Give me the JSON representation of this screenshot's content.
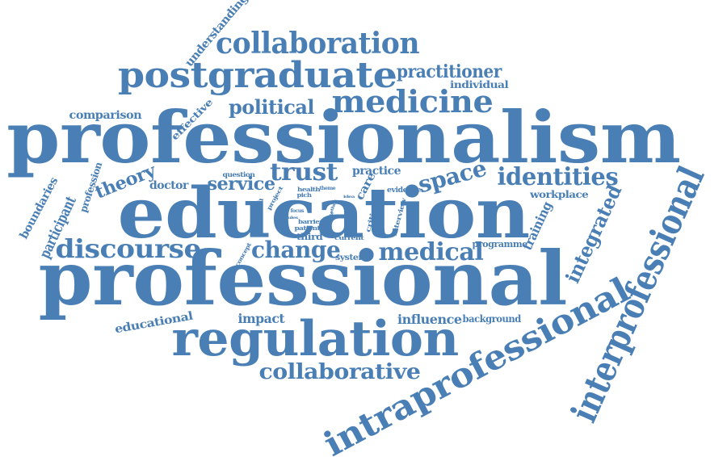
{
  "theme": {
    "word_color": "#4a7fb5",
    "background": "#ffffff"
  },
  "words": [
    "professionalism",
    "professional",
    "education",
    "regulation",
    "postgraduate",
    "interprofessional",
    "intraprofessional",
    "medicine",
    "collaboration",
    "discourse",
    "identities",
    "collaborative",
    "trust",
    "change",
    "medical",
    "space",
    "political",
    "practitioner",
    "integrated",
    "service",
    "theory",
    "comparison",
    "influence",
    "educational",
    "impact",
    "participant",
    "boundaries",
    "doctor",
    "workplace",
    "training",
    "practice",
    "understanding",
    "individual",
    "profession",
    "effective",
    "background",
    "programme",
    "evidence",
    "system",
    "third",
    "care",
    "interview",
    "approach",
    "question",
    "critical",
    "patient",
    "current",
    "barrier",
    "concept",
    "project",
    "health",
    "theme",
    "pich",
    "ethos",
    "idea",
    "focus",
    "rules",
    "role"
  ]
}
